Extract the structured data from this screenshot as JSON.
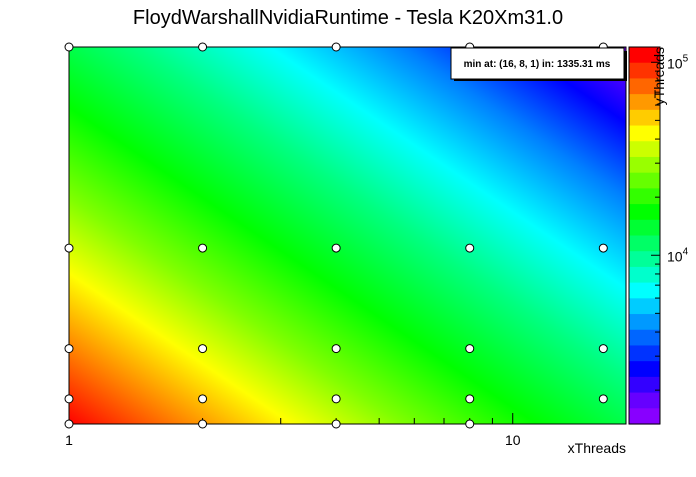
{
  "chart_data": {
    "type": "heatmap",
    "title": "FloydWarshallNvidiaRuntime - Tesla K20Xm31.0",
    "xlabel": "xThreads",
    "ylabel": "yThreads",
    "x_scale": "log",
    "x_range": [
      1,
      18
    ],
    "x_tick_labels": [
      "1",
      "10"
    ],
    "y_range": [
      1,
      16
    ],
    "annotation": "min at: (16, 8, 1) in: 1335.31 ms",
    "colorbar": {
      "scale": "log",
      "range": [
        1335.31,
        120000
      ],
      "tick_labels": [
        {
          "value": 10000,
          "base": "10",
          "exp": "4"
        },
        {
          "value": 100000,
          "base": "10",
          "exp": "5"
        }
      ]
    },
    "points": [
      {
        "x": 1,
        "y": 1
      },
      {
        "x": 2,
        "y": 1
      },
      {
        "x": 4,
        "y": 1
      },
      {
        "x": 8,
        "y": 1
      },
      {
        "x": 1,
        "y": 2
      },
      {
        "x": 2,
        "y": 2
      },
      {
        "x": 4,
        "y": 2
      },
      {
        "x": 8,
        "y": 2
      },
      {
        "x": 16,
        "y": 2
      },
      {
        "x": 1,
        "y": 4
      },
      {
        "x": 2,
        "y": 4
      },
      {
        "x": 4,
        "y": 4
      },
      {
        "x": 8,
        "y": 4
      },
      {
        "x": 16,
        "y": 4
      },
      {
        "x": 1,
        "y": 8
      },
      {
        "x": 2,
        "y": 8
      },
      {
        "x": 4,
        "y": 8
      },
      {
        "x": 8,
        "y": 8
      },
      {
        "x": 16,
        "y": 8
      },
      {
        "x": 1,
        "y": 16
      },
      {
        "x": 2,
        "y": 16
      },
      {
        "x": 4,
        "y": 16
      },
      {
        "x": 8,
        "y": 16
      },
      {
        "x": 16,
        "y": 16
      }
    ]
  }
}
